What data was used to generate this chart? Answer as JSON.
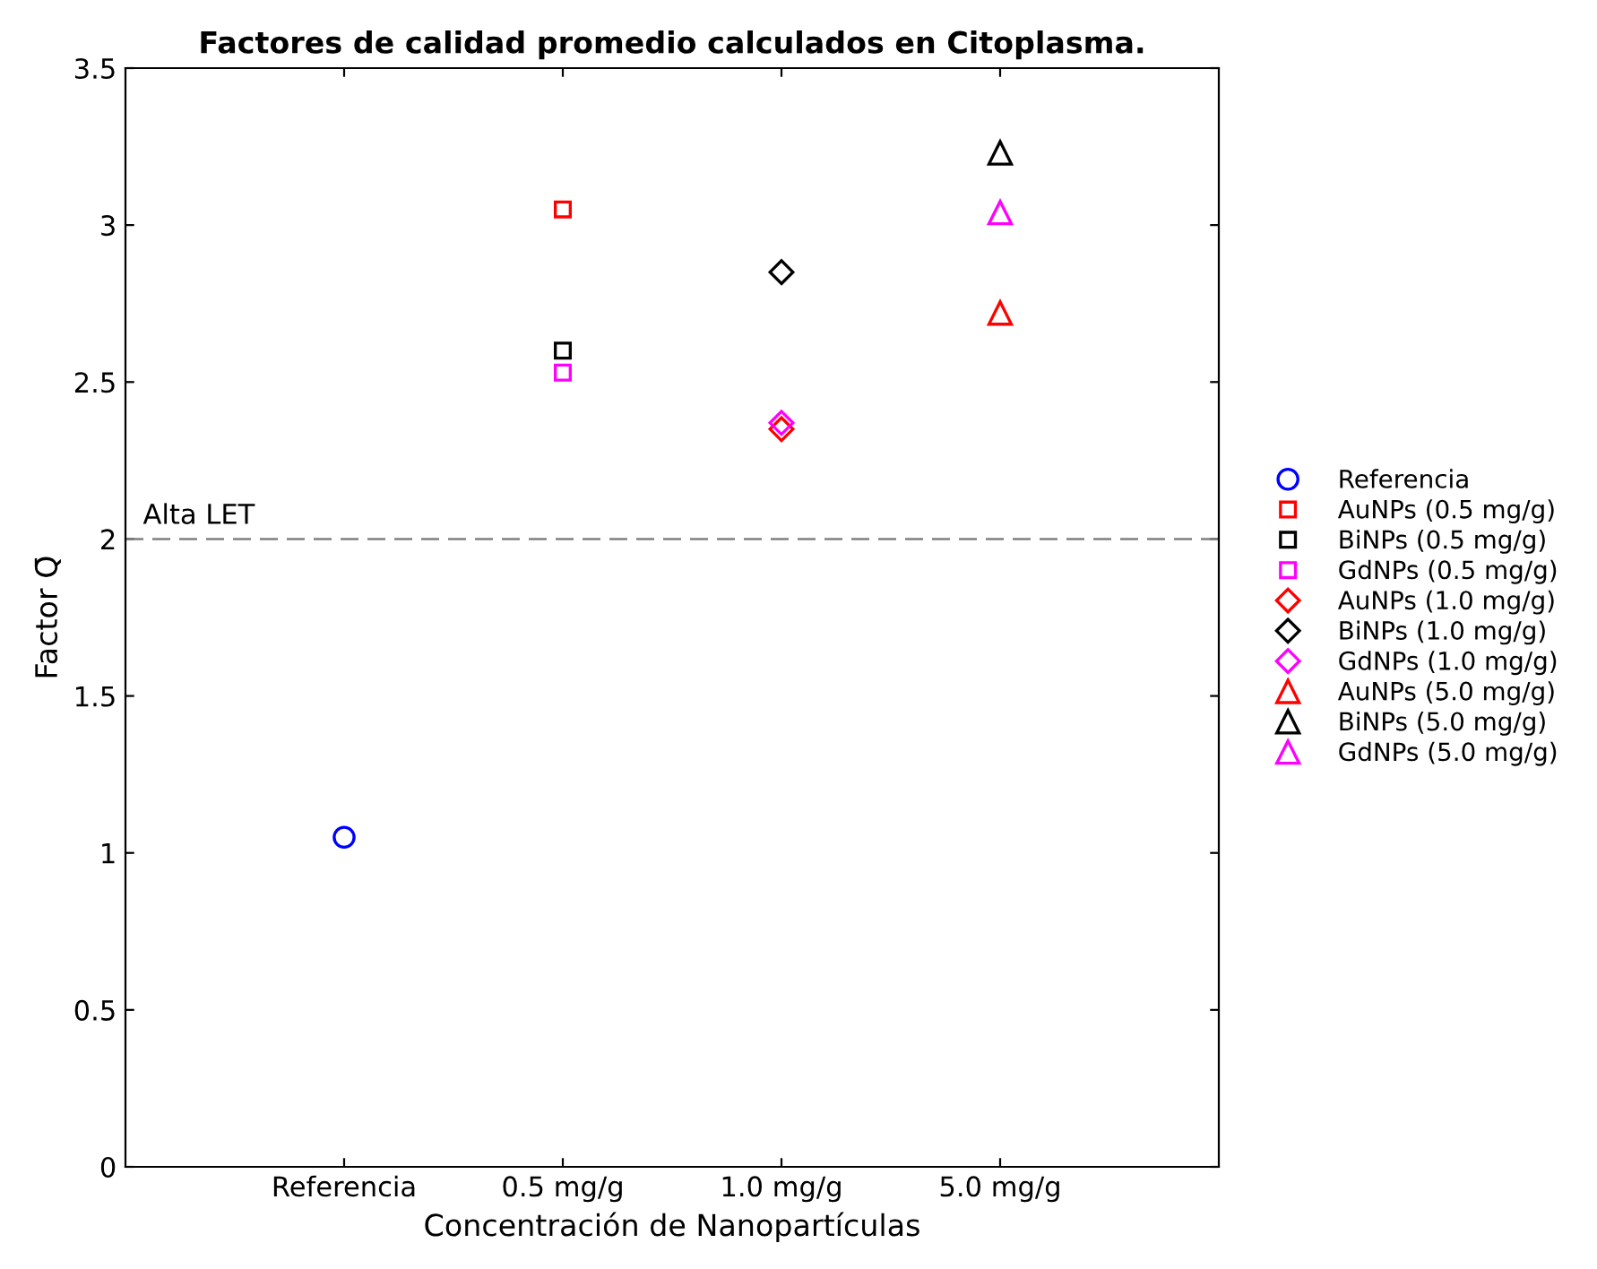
{
  "chart_data": {
    "type": "scatter",
    "title": "Factores de calidad promedio calculados en Citoplasma.",
    "xlabel": "Concentración de Nanopartículas",
    "ylabel": "Factor Q̄",
    "categories": [
      "Referencia",
      "0.5 mg/g",
      "1.0 mg/g",
      "5.0 mg/g"
    ],
    "ylim": [
      0,
      3.5
    ],
    "yticks": [
      0,
      0.5,
      1,
      1.5,
      2,
      2.5,
      3,
      3.5
    ],
    "grid": false,
    "legend": "right",
    "ref_lines": [
      {
        "axis": "y",
        "value": 2,
        "label": "Alta LET",
        "color": "#808080",
        "line_style": "dashed"
      }
    ],
    "series": [
      {
        "name": "Referencia",
        "color": "#0000ff",
        "marker": "circle",
        "values": [
          1.05,
          null,
          null,
          null
        ]
      },
      {
        "name": "AuNPs (0.5 mg/g)",
        "color": "#ff0000",
        "marker": "square",
        "values": [
          null,
          3.05,
          null,
          null
        ]
      },
      {
        "name": "BiNPs (0.5 mg/g)",
        "color": "#000000",
        "marker": "square",
        "values": [
          null,
          2.6,
          null,
          null
        ]
      },
      {
        "name": "GdNPs (0.5 mg/g)",
        "color": "#ff00ff",
        "marker": "square",
        "values": [
          null,
          2.53,
          null,
          null
        ]
      },
      {
        "name": "AuNPs (1.0 mg/g)",
        "color": "#ff0000",
        "marker": "diamond",
        "values": [
          null,
          null,
          2.35,
          null
        ]
      },
      {
        "name": "BiNPs (1.0 mg/g)",
        "color": "#000000",
        "marker": "diamond",
        "values": [
          null,
          null,
          2.85,
          null
        ]
      },
      {
        "name": "GdNPs (1.0 mg/g)",
        "color": "#ff00ff",
        "marker": "diamond",
        "values": [
          null,
          null,
          2.37,
          null
        ]
      },
      {
        "name": "AuNPs (5.0 mg/g)",
        "color": "#ff0000",
        "marker": "triangle",
        "values": [
          null,
          null,
          null,
          2.72
        ]
      },
      {
        "name": "BiNPs (5.0 mg/g)",
        "color": "#000000",
        "marker": "triangle",
        "values": [
          null,
          null,
          null,
          3.23
        ]
      },
      {
        "name": "GdNPs (5.0 mg/g)",
        "color": "#ff00ff",
        "marker": "triangle",
        "values": [
          null,
          null,
          null,
          3.04
        ]
      }
    ]
  }
}
